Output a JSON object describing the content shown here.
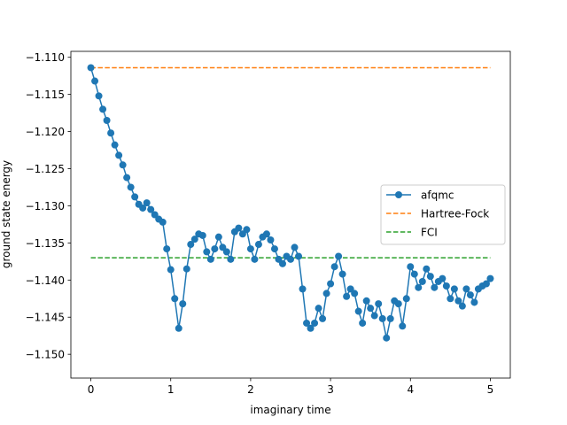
{
  "chart_data": {
    "type": "line",
    "title": "",
    "xlabel": "imaginary time",
    "ylabel": "ground state energy",
    "xlim": [
      -0.25,
      5.25
    ],
    "ylim": [
      -1.1532,
      -1.1092
    ],
    "xticks": [
      0,
      1,
      2,
      3,
      4,
      5
    ],
    "yticks": [
      -1.11,
      -1.115,
      -1.12,
      -1.125,
      -1.13,
      -1.135,
      -1.14,
      -1.145,
      -1.15
    ],
    "ytick_labels": [
      "−1.110",
      "−1.115",
      "−1.120",
      "−1.125",
      "−1.130",
      "−1.135",
      "−1.140",
      "−1.145",
      "−1.150"
    ],
    "grid": false,
    "legend_position": "center-right",
    "series": [
      {
        "name": "afqmc",
        "style": "line-with-circle-markers",
        "color": "#1f77b4",
        "x": [
          0.0,
          0.05,
          0.1,
          0.15,
          0.2,
          0.25,
          0.3,
          0.35,
          0.4,
          0.45,
          0.5,
          0.55,
          0.6,
          0.65,
          0.7,
          0.75,
          0.8,
          0.85,
          0.9,
          0.95,
          1.0,
          1.05,
          1.1,
          1.15,
          1.2,
          1.25,
          1.3,
          1.35,
          1.4,
          1.45,
          1.5,
          1.55,
          1.6,
          1.65,
          1.7,
          1.75,
          1.8,
          1.85,
          1.9,
          1.95,
          2.0,
          2.05,
          2.1,
          2.15,
          2.2,
          2.25,
          2.3,
          2.35,
          2.4,
          2.45,
          2.5,
          2.55,
          2.6,
          2.65,
          2.7,
          2.75,
          2.8,
          2.85,
          2.9,
          2.95,
          3.0,
          3.05,
          3.1,
          3.15,
          3.2,
          3.25,
          3.3,
          3.35,
          3.4,
          3.45,
          3.5,
          3.55,
          3.6,
          3.65,
          3.7,
          3.75,
          3.8,
          3.85,
          3.9,
          3.95,
          4.0,
          4.05,
          4.1,
          4.15,
          4.2,
          4.25,
          4.3,
          4.35,
          4.4,
          4.45,
          4.5,
          4.55,
          4.6,
          4.65,
          4.7,
          4.75,
          4.8,
          4.85,
          4.9,
          4.95,
          5.0
        ],
        "values": [
          -1.1114,
          -1.1132,
          -1.1152,
          -1.117,
          -1.1185,
          -1.1202,
          -1.1218,
          -1.1232,
          -1.1245,
          -1.1262,
          -1.1275,
          -1.1288,
          -1.1298,
          -1.1303,
          -1.1296,
          -1.1305,
          -1.1312,
          -1.1318,
          -1.1322,
          -1.1358,
          -1.1386,
          -1.1425,
          -1.1465,
          -1.1432,
          -1.1385,
          -1.1352,
          -1.1345,
          -1.1338,
          -1.134,
          -1.1362,
          -1.1372,
          -1.1358,
          -1.1342,
          -1.1356,
          -1.1362,
          -1.1372,
          -1.1335,
          -1.133,
          -1.1338,
          -1.1332,
          -1.1358,
          -1.1372,
          -1.1352,
          -1.1342,
          -1.1338,
          -1.1346,
          -1.1358,
          -1.1372,
          -1.1378,
          -1.1368,
          -1.1372,
          -1.1356,
          -1.1368,
          -1.1412,
          -1.1458,
          -1.1465,
          -1.1458,
          -1.1438,
          -1.1452,
          -1.1418,
          -1.1405,
          -1.1382,
          -1.1368,
          -1.1392,
          -1.1422,
          -1.1412,
          -1.1418,
          -1.1442,
          -1.1458,
          -1.1428,
          -1.1438,
          -1.1448,
          -1.1432,
          -1.1452,
          -1.1478,
          -1.1452,
          -1.1428,
          -1.1432,
          -1.1462,
          -1.1425,
          -1.1382,
          -1.1392,
          -1.141,
          -1.1402,
          -1.1385,
          -1.1395,
          -1.141,
          -1.1402,
          -1.1398,
          -1.1408,
          -1.1425,
          -1.1412,
          -1.1428,
          -1.1435,
          -1.1412,
          -1.142,
          -1.143,
          -1.1412,
          -1.1408,
          -1.1405,
          -1.1398
        ]
      },
      {
        "name": "Hartree-Fock",
        "style": "dashed",
        "color": "#ff7f0e",
        "x": [
          0,
          5
        ],
        "values": [
          -1.1114,
          -1.1114
        ]
      },
      {
        "name": "FCI",
        "style": "dashed",
        "color": "#2ca02c",
        "x": [
          0,
          5
        ],
        "values": [
          -1.137,
          -1.137
        ]
      }
    ]
  }
}
